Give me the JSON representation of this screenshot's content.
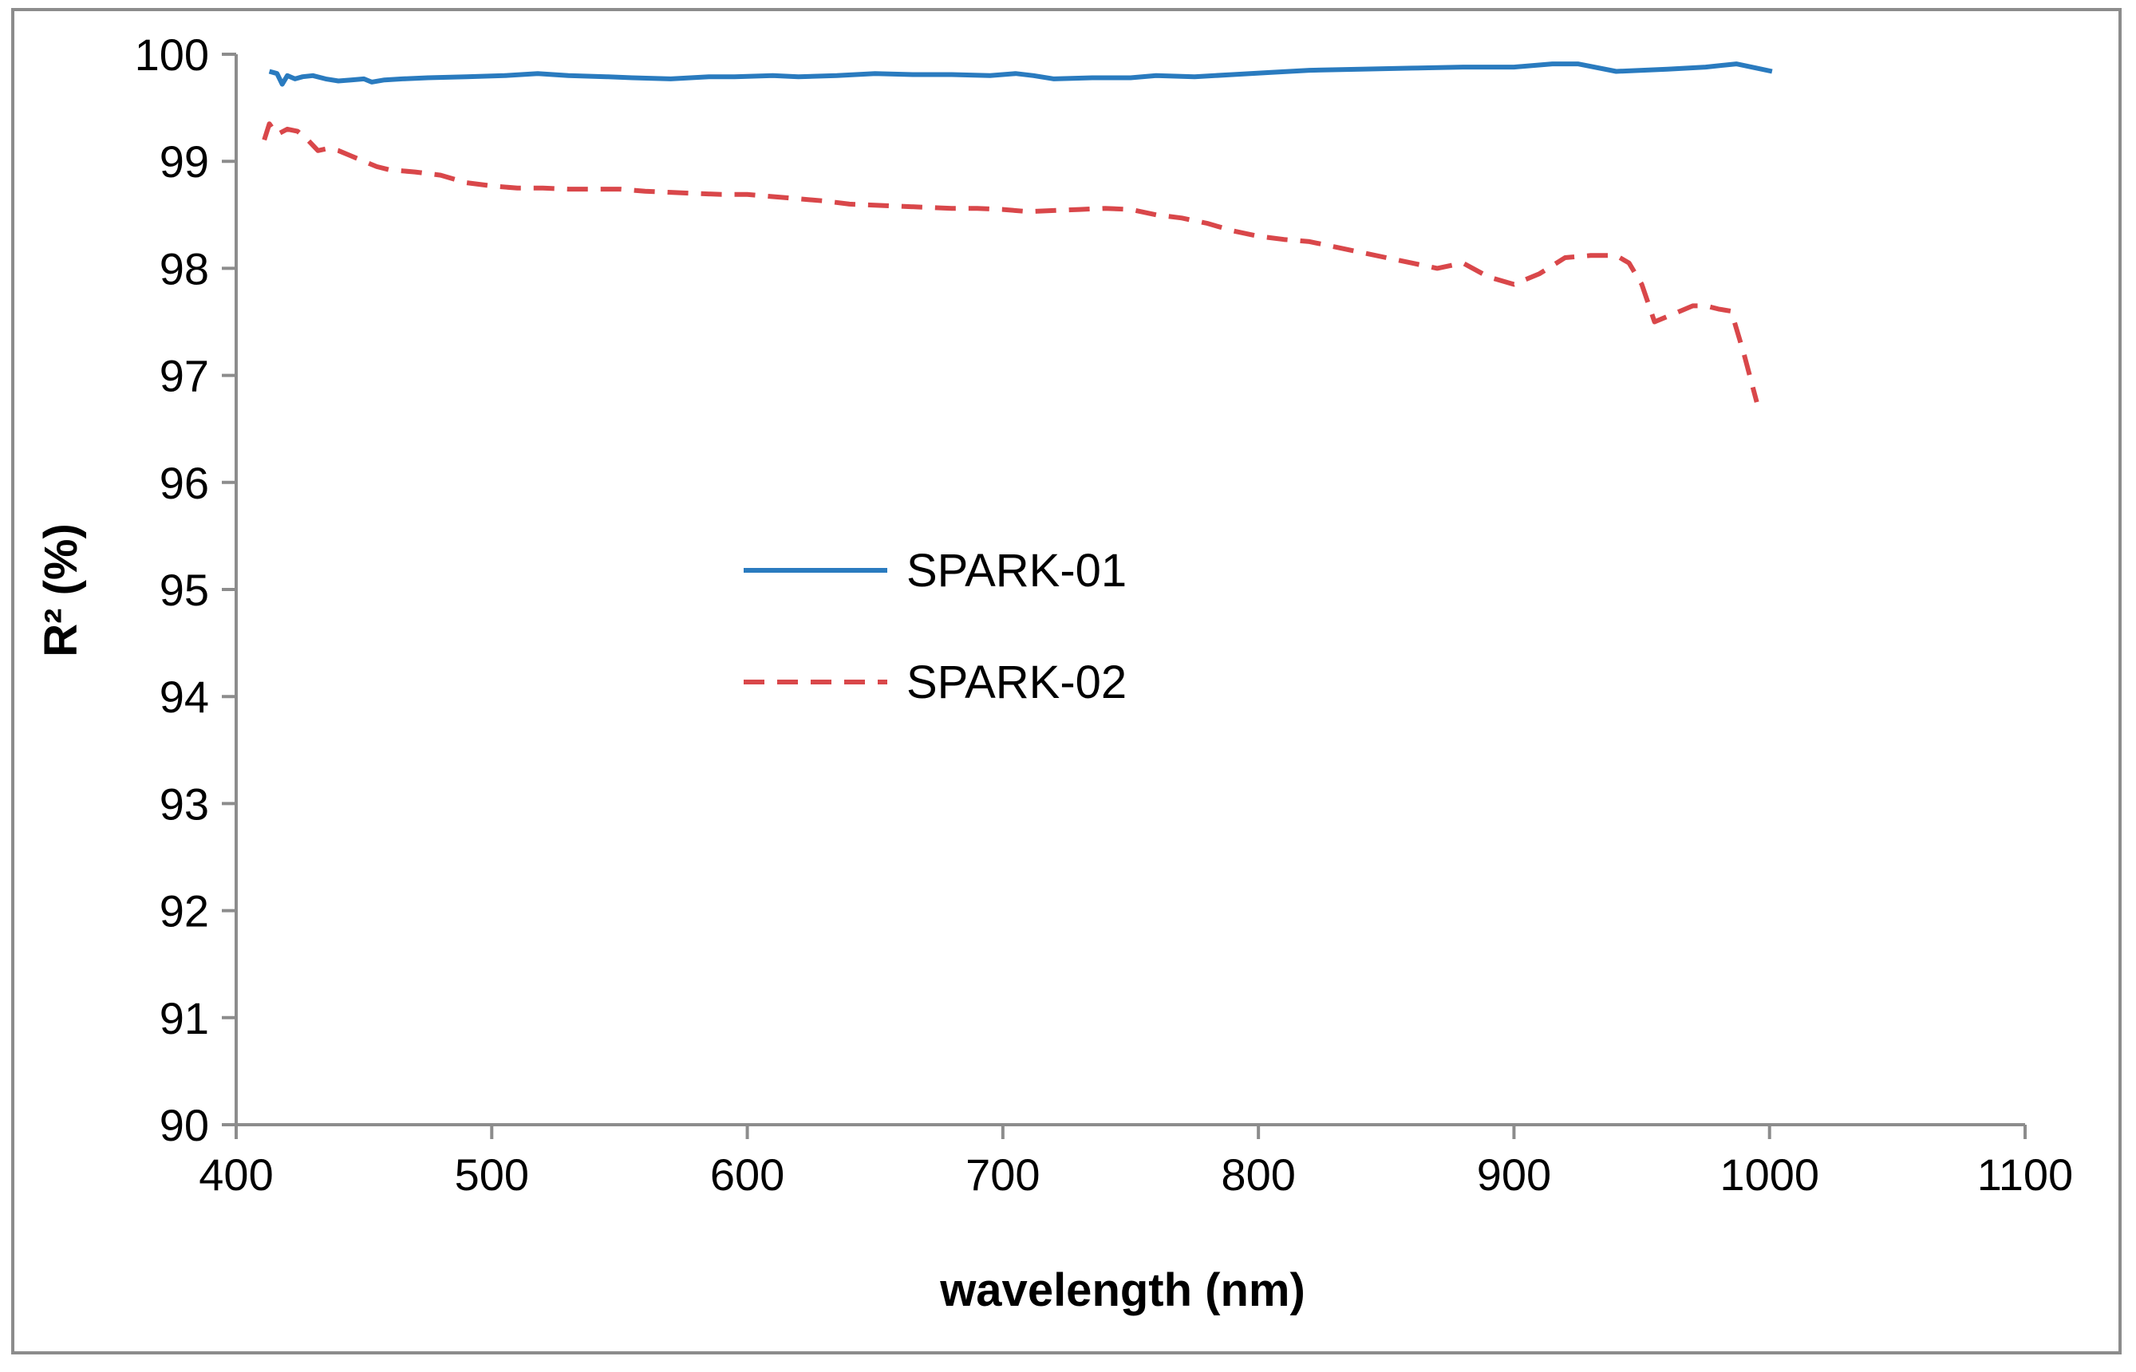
{
  "chart_data": {
    "type": "line",
    "title": "",
    "xlabel": "wavelength (nm)",
    "ylabel": "R² (%)",
    "xlim": [
      400,
      1100
    ],
    "ylim": [
      90,
      100
    ],
    "x_ticks": [
      400,
      500,
      600,
      700,
      800,
      900,
      1000,
      1100
    ],
    "y_ticks": [
      90,
      91,
      92,
      93,
      94,
      95,
      96,
      97,
      98,
      99,
      100
    ],
    "grid": false,
    "legend_position": "center-left",
    "colors": {
      "SPARK-01": "#2a7bbf",
      "SPARK-02": "#d9474a"
    },
    "series": [
      {
        "name": "SPARK-01",
        "style": "solid",
        "x": [
          413,
          416,
          418,
          420,
          423,
          426,
          430,
          435,
          440,
          445,
          450,
          453,
          458,
          465,
          475,
          490,
          505,
          518,
          530,
          545,
          555,
          570,
          585,
          595,
          610,
          620,
          635,
          650,
          665,
          680,
          695,
          705,
          712,
          720,
          735,
          750,
          760,
          775,
          790,
          805,
          820,
          840,
          860,
          880,
          900,
          915,
          925,
          940,
          960,
          975,
          987,
          995,
          1001
        ],
        "y": [
          99.84,
          99.82,
          99.72,
          99.8,
          99.77,
          99.79,
          99.8,
          99.77,
          99.75,
          99.76,
          99.77,
          99.74,
          99.76,
          99.77,
          99.78,
          99.79,
          99.8,
          99.82,
          99.8,
          99.79,
          99.78,
          99.77,
          99.79,
          99.79,
          99.8,
          99.79,
          99.8,
          99.82,
          99.81,
          99.81,
          99.8,
          99.82,
          99.8,
          99.77,
          99.78,
          99.78,
          99.8,
          99.79,
          99.81,
          99.83,
          99.85,
          99.86,
          99.87,
          99.88,
          99.88,
          99.91,
          99.91,
          99.84,
          99.86,
          99.88,
          99.91,
          99.87,
          99.84
        ]
      },
      {
        "name": "SPARK-02",
        "style": "dashed",
        "x": [
          411,
          413,
          416,
          420,
          424,
          428,
          432,
          436,
          440,
          445,
          450,
          455,
          460,
          470,
          480,
          490,
          500,
          510,
          520,
          530,
          540,
          550,
          560,
          570,
          580,
          590,
          600,
          610,
          620,
          630,
          640,
          650,
          660,
          670,
          680,
          690,
          700,
          710,
          720,
          730,
          740,
          750,
          760,
          770,
          780,
          790,
          800,
          810,
          820,
          830,
          840,
          850,
          860,
          870,
          880,
          890,
          900,
          910,
          920,
          930,
          940,
          945,
          950,
          955,
          960,
          965,
          970,
          975,
          980,
          985,
          990,
          995
        ],
        "y": [
          99.2,
          99.35,
          99.25,
          99.3,
          99.28,
          99.2,
          99.1,
          99.12,
          99.1,
          99.05,
          99.0,
          98.95,
          98.92,
          98.9,
          98.87,
          98.8,
          98.77,
          98.75,
          98.75,
          98.74,
          98.74,
          98.74,
          98.72,
          98.71,
          98.7,
          98.69,
          98.69,
          98.67,
          98.65,
          98.63,
          98.6,
          98.59,
          98.58,
          98.57,
          98.56,
          98.56,
          98.55,
          98.53,
          98.54,
          98.55,
          98.56,
          98.55,
          98.5,
          98.47,
          98.42,
          98.35,
          98.3,
          98.27,
          98.25,
          98.2,
          98.15,
          98.1,
          98.05,
          98.0,
          98.05,
          97.92,
          97.85,
          97.95,
          98.1,
          98.12,
          98.12,
          98.05,
          97.85,
          97.5,
          97.55,
          97.6,
          97.65,
          97.65,
          97.62,
          97.6,
          97.2,
          96.75
        ]
      }
    ]
  }
}
